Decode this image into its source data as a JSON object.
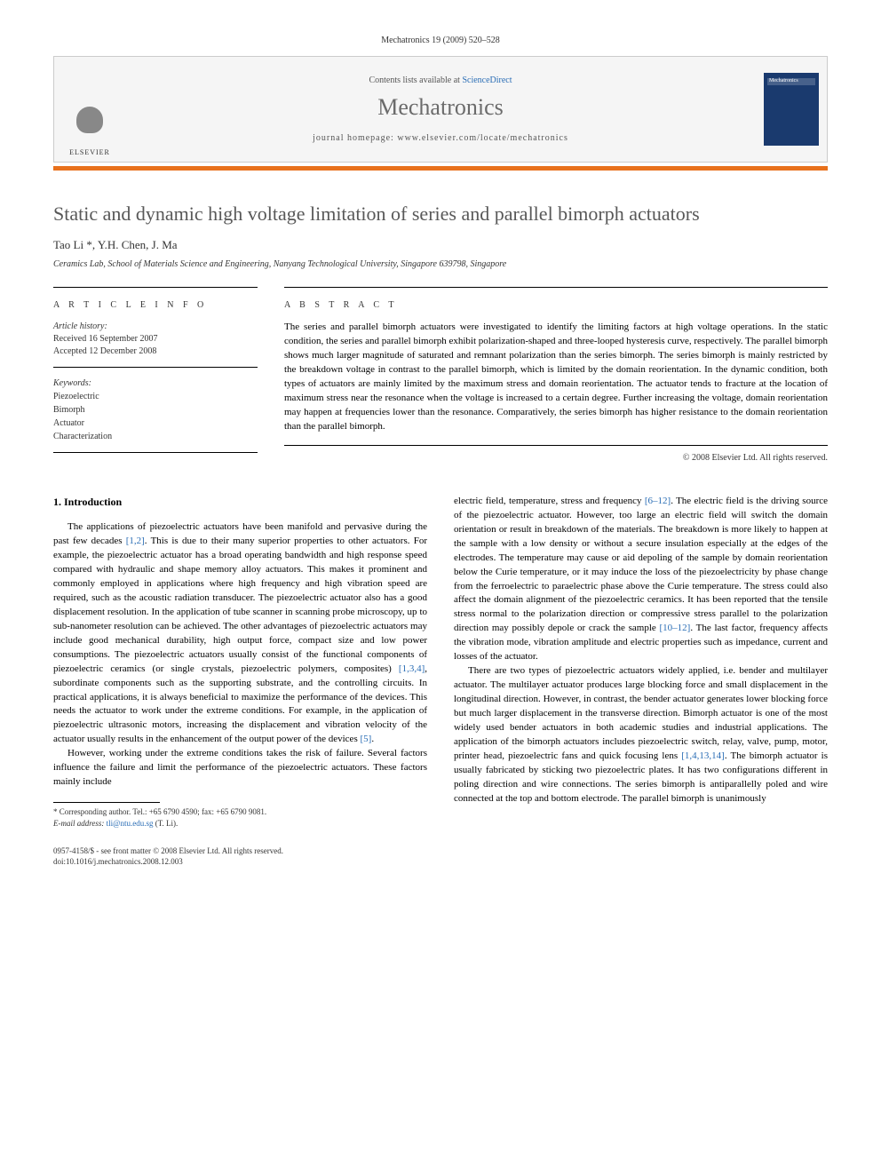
{
  "header": {
    "citation": "Mechatronics 19 (2009) 520–528",
    "contents_prefix": "Contents lists available at ",
    "contents_link": "ScienceDirect",
    "journal_name": "Mechatronics",
    "homepage_prefix": "journal homepage: ",
    "homepage_url": "www.elsevier.com/locate/mechatronics",
    "publisher_logo_text": "ELSEVIER",
    "cover_title": "Mechatronics"
  },
  "article": {
    "title": "Static and dynamic high voltage limitation of series and parallel bimorph actuators",
    "authors": "Tao Li *, Y.H. Chen, J. Ma",
    "affiliation": "Ceramics Lab, School of Materials Science and Engineering, Nanyang Technological University, Singapore 639798, Singapore"
  },
  "info": {
    "section_label": "A R T I C L E   I N F O",
    "history_label": "Article history:",
    "received": "Received 16 September 2007",
    "accepted": "Accepted 12 December 2008",
    "keywords_label": "Keywords:",
    "keywords": [
      "Piezoelectric",
      "Bimorph",
      "Actuator",
      "Characterization"
    ]
  },
  "abstract": {
    "section_label": "A B S T R A C T",
    "text": "The series and parallel bimorph actuators were investigated to identify the limiting factors at high voltage operations. In the static condition, the series and parallel bimorph exhibit polarization-shaped and three-looped hysteresis curve, respectively. The parallel bimorph shows much larger magnitude of saturated and remnant polarization than the series bimorph. The series bimorph is mainly restricted by the breakdown voltage in contrast to the parallel bimorph, which is limited by the domain reorientation. In the dynamic condition, both types of actuators are mainly limited by the maximum stress and domain reorientation. The actuator tends to fracture at the location of maximum stress near the resonance when the voltage is increased to a certain degree. Further increasing the voltage, domain reorientation may happen at frequencies lower than the resonance. Comparatively, the series bimorph has higher resistance to the domain reorientation than the parallel bimorph.",
    "copyright": "© 2008 Elsevier Ltd. All rights reserved."
  },
  "body": {
    "section_heading": "1. Introduction",
    "col1_p1_a": "The applications of piezoelectric actuators have been manifold and pervasive during the past few decades ",
    "col1_p1_ref1": "[1,2]",
    "col1_p1_b": ". This is due to their many superior properties to other actuators. For example, the piezoelectric actuator has a broad operating bandwidth and high response speed compared with hydraulic and shape memory alloy actuators. This makes it prominent and commonly employed in applications where high frequency and high vibration speed are required, such as the acoustic radiation transducer. The piezoelectric actuator also has a good displacement resolution. In the application of tube scanner in scanning probe microscopy, up to sub-nanometer resolution can be achieved. The other advantages of piezoelectric actuators may include good mechanical durability, high output force, compact size and low power consumptions. The piezoelectric actuators usually consist of the functional components of piezoelectric ceramics (or single crystals, piezoelectric polymers, composites) ",
    "col1_p1_ref2": "[1,3,4]",
    "col1_p1_c": ", subordinate components such as the supporting substrate, and the controlling circuits. In practical applications, it is always beneficial to maximize the performance of the devices. This needs the actuator to work under the extreme conditions. For example, in the application of piezoelectric ultrasonic motors, increasing the displacement and vibration velocity of the actuator usually results in the enhancement of the output power of the devices ",
    "col1_p1_ref3": "[5]",
    "col1_p1_d": ".",
    "col1_p2": "However, working under the extreme conditions takes the risk of failure. Several factors influence the failure and limit the performance of the piezoelectric actuators. These factors mainly include",
    "col2_p1_a": "electric field, temperature, stress and frequency ",
    "col2_p1_ref1": "[6–12]",
    "col2_p1_b": ". The electric field is the driving source of the piezoelectric actuator. However, too large an electric field will switch the domain orientation or result in breakdown of the materials. The breakdown is more likely to happen at the sample with a low density or without a secure insulation especially at the edges of the electrodes. The temperature may cause or aid depoling of the sample by domain reorientation below the Curie temperature, or it may induce the loss of the piezoelectricity by phase change from the ferroelectric to paraelectric phase above the Curie temperature. The stress could also affect the domain alignment of the piezoelectric ceramics. It has been reported that the tensile stress normal to the polarization direction or compressive stress parallel to the polarization direction may possibly depole or crack the sample ",
    "col2_p1_ref2": "[10–12]",
    "col2_p1_c": ". The last factor, frequency affects the vibration mode, vibration amplitude and electric properties such as impedance, current and losses of the actuator.",
    "col2_p2_a": "There are two types of piezoelectric actuators widely applied, i.e. bender and multilayer actuator. The multilayer actuator produces large blocking force and small displacement in the longitudinal direction. However, in contrast, the bender actuator generates lower blocking force but much larger displacement in the transverse direction. Bimorph actuator is one of the most widely used bender actuators in both academic studies and industrial applications. The application of the bimorph actuators includes piezoelectric switch, relay, valve, pump, motor, printer head, piezoelectric fans and quick focusing lens ",
    "col2_p2_ref1": "[1,4,13,14]",
    "col2_p2_b": ". The bimorph actuator is usually fabricated by sticking two piezoelectric plates. It has two configurations different in poling direction and wire connections. The series bimorph is antiparallelly poled and wire connected at the top and bottom electrode. The parallel bimorph is unanimously"
  },
  "footnote": {
    "corr_label": "* Corresponding author. Tel.: +65 6790 4590; fax: +65 6790 9081.",
    "email_label": "E-mail address:",
    "email": "tli@ntu.edu.sg",
    "email_suffix": "(T. Li)."
  },
  "bottom": {
    "line1": "0957-4158/$ - see front matter © 2008 Elsevier Ltd. All rights reserved.",
    "line2": "doi:10.1016/j.mechatronics.2008.12.003"
  },
  "colors": {
    "accent_orange": "#e8711c",
    "link_blue": "#2a6db5",
    "title_grey": "#585858",
    "cover_blue": "#1a3a6e"
  }
}
